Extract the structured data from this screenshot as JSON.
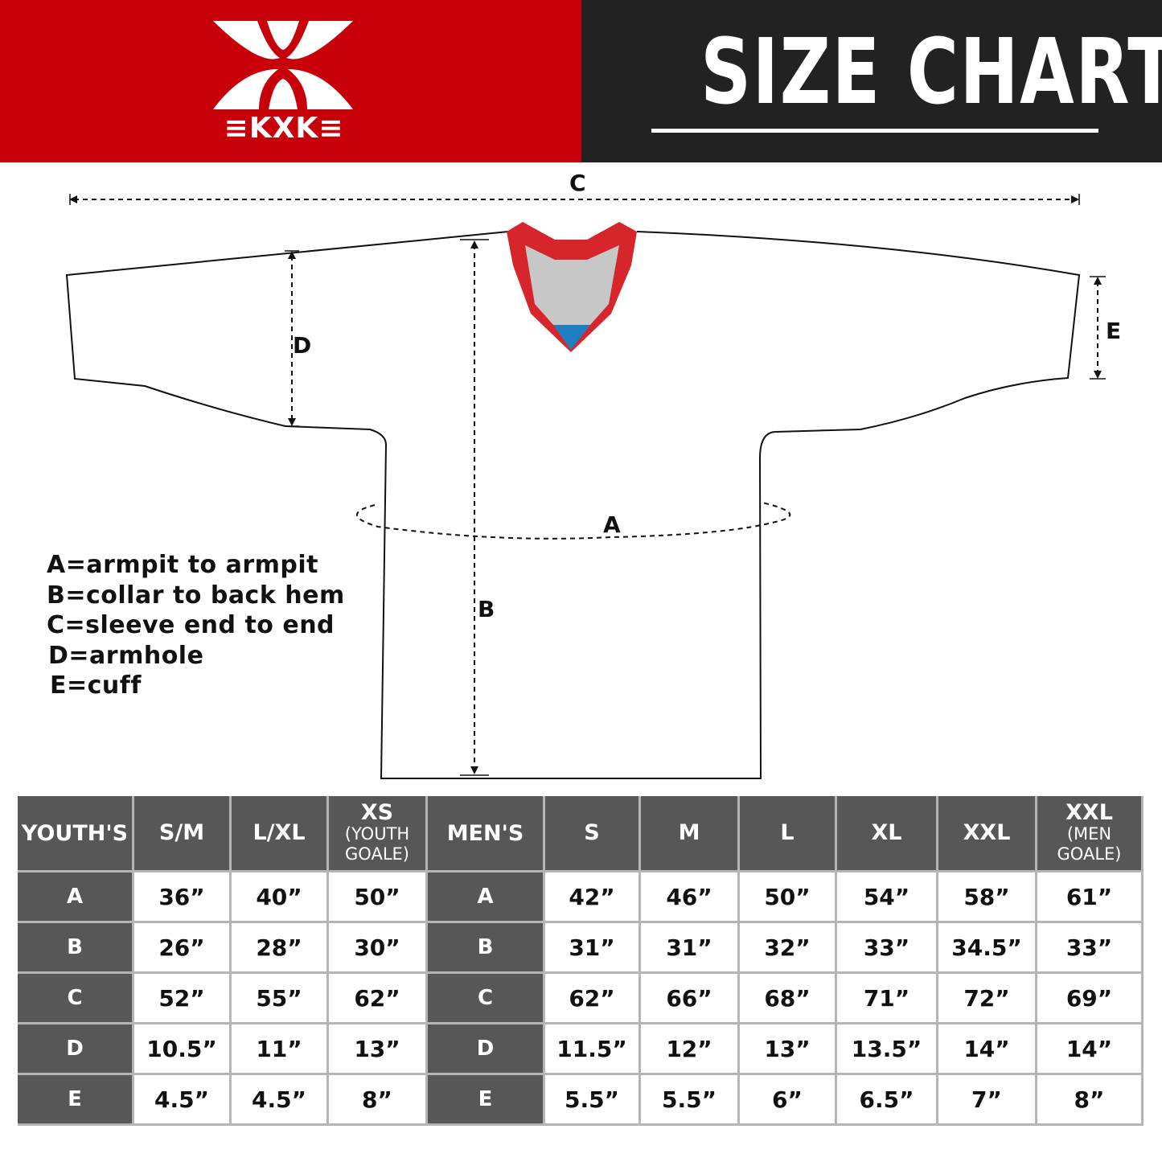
{
  "brand": {
    "logo_text": "≡KXK≡",
    "colors": {
      "red": "#c8000a",
      "dark": "#222222",
      "table_header": "#575757"
    }
  },
  "header": {
    "title": "SIZE CHART"
  },
  "diagram": {
    "labels": {
      "a": "A",
      "b": "B",
      "c": "C",
      "d": "D",
      "e": "E"
    },
    "colors": {
      "collar_trim": "#d7262b",
      "collar_inner": "#c7c7c7",
      "collar_tip": "#1f7dc4"
    }
  },
  "legend": [
    "A=armpit to armpit",
    "B=collar to back hem",
    "C=sleeve end to end",
    "D=armhole",
    "E=cuff"
  ],
  "table": {
    "youth": {
      "header": "YOUTH'S",
      "sizes": [
        {
          "main": "S/M",
          "sub": ""
        },
        {
          "main": "L/XL",
          "sub": ""
        },
        {
          "main": "XS",
          "sub": "(YOUTH GOALE)"
        }
      ]
    },
    "men": {
      "header": "MEN'S",
      "sizes": [
        {
          "main": "S",
          "sub": ""
        },
        {
          "main": "M",
          "sub": ""
        },
        {
          "main": "L",
          "sub": ""
        },
        {
          "main": "XL",
          "sub": ""
        },
        {
          "main": "XXL",
          "sub": ""
        },
        {
          "main": "XXL",
          "sub": "(MEN GOALE)"
        }
      ]
    },
    "rows": [
      {
        "label": "A",
        "youth": [
          "36”",
          "40”",
          "50”"
        ],
        "men": [
          "42”",
          "46”",
          "50”",
          "54”",
          "58”",
          "61”"
        ]
      },
      {
        "label": "B",
        "youth": [
          "26”",
          "28”",
          "30”"
        ],
        "men": [
          "31”",
          "31”",
          "32”",
          "33”",
          "34.5”",
          "33”"
        ]
      },
      {
        "label": "C",
        "youth": [
          "52”",
          "55”",
          "62”"
        ],
        "men": [
          "62”",
          "66”",
          "68”",
          "71”",
          "72”",
          "69”"
        ]
      },
      {
        "label": "D",
        "youth": [
          "10.5”",
          "11”",
          "13”"
        ],
        "men": [
          "11.5”",
          "12”",
          "13”",
          "13.5”",
          "14”",
          "14”"
        ]
      },
      {
        "label": "E",
        "youth": [
          "4.5”",
          "4.5”",
          "8”"
        ],
        "men": [
          "5.5”",
          "5.5”",
          "6”",
          "6.5”",
          "7”",
          "8”"
        ]
      }
    ]
  }
}
